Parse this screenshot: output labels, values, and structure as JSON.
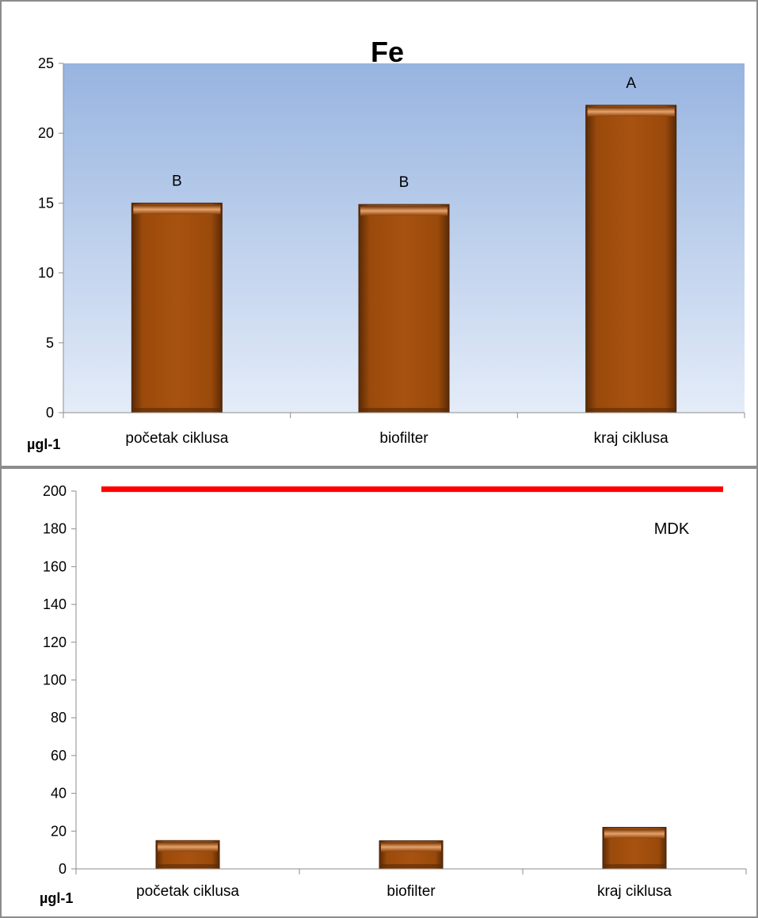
{
  "chart_data": [
    {
      "type": "bar",
      "title": "Fe",
      "unit_label": "µgl-1",
      "categories": [
        "početak ciklusa",
        "biofilter",
        "kraj ciklusa"
      ],
      "values": [
        15.0,
        14.9,
        22.0
      ],
      "data_labels": [
        "B",
        "B",
        "A"
      ],
      "ylim": [
        0,
        25
      ],
      "yticks": [
        0,
        5,
        10,
        15,
        20,
        25
      ],
      "grid": false,
      "colors": {
        "bar": "#a14d0c",
        "plot_bg_top": "#97b4e0",
        "plot_bg_bottom": "#e4ecf8",
        "border": "#8c8c8c"
      }
    },
    {
      "type": "bar",
      "unit_label": "µgl-1",
      "categories": [
        "početak ciklusa",
        "biofilter",
        "kraj ciklusa"
      ],
      "values": [
        15.0,
        14.9,
        22.0
      ],
      "reference_line": {
        "value": 201,
        "label": "MDK",
        "color": "#ff0000"
      },
      "ylim": [
        0,
        200
      ],
      "yticks": [
        0,
        20,
        40,
        60,
        80,
        100,
        120,
        140,
        160,
        180,
        200
      ],
      "grid": false,
      "colors": {
        "bar": "#a14d0c",
        "border": "#8c8c8c"
      }
    }
  ]
}
